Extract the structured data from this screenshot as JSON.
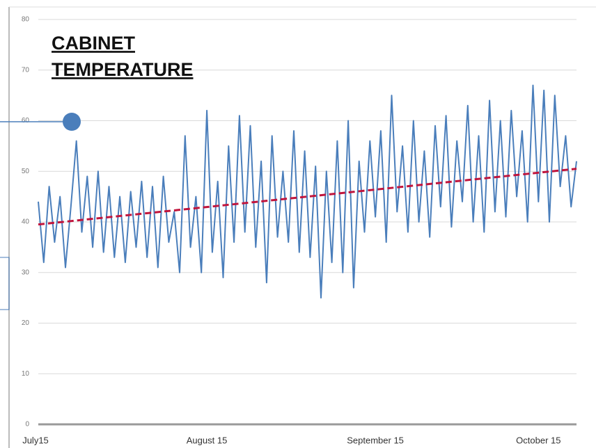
{
  "chart_data": {
    "type": "line",
    "title_lines": [
      "CABINET",
      "TEMPERATURE"
    ],
    "categories": [
      "July15",
      null,
      null,
      null,
      null,
      null,
      null,
      null,
      null,
      null,
      null,
      null,
      null,
      null,
      null,
      null,
      null,
      null,
      null,
      null,
      null,
      null,
      null,
      null,
      null,
      null,
      null,
      null,
      null,
      null,
      null,
      "August 15",
      null,
      null,
      null,
      null,
      null,
      null,
      null,
      null,
      null,
      null,
      null,
      null,
      null,
      null,
      null,
      null,
      null,
      null,
      null,
      null,
      null,
      null,
      null,
      null,
      null,
      null,
      null,
      null,
      null,
      null,
      "September 15",
      null,
      null,
      null,
      null,
      null,
      null,
      null,
      null,
      null,
      null,
      null,
      null,
      null,
      null,
      null,
      null,
      null,
      null,
      null,
      null,
      null,
      null,
      null,
      null,
      null,
      null,
      null,
      null,
      null,
      "October 15",
      null,
      null,
      null,
      null,
      null,
      null,
      null
    ],
    "series": [
      {
        "color": "#4a7ebb",
        "values": [
          44,
          32,
          47,
          36,
          45,
          31,
          43,
          56,
          38,
          49,
          35,
          50,
          34,
          47,
          33,
          45,
          32,
          46,
          35,
          48,
          33,
          47,
          31,
          49,
          36,
          42,
          30,
          57,
          35,
          45,
          30,
          62,
          34,
          48,
          29,
          55,
          36,
          61,
          38,
          59,
          35,
          52,
          28,
          57,
          37,
          50,
          36,
          58,
          34,
          54,
          33,
          51,
          25,
          50,
          32,
          56,
          30,
          60,
          27,
          52,
          38,
          56,
          41,
          58,
          36,
          65,
          42,
          55,
          38,
          60,
          40,
          54,
          37,
          59,
          43,
          61,
          39,
          56,
          44,
          63,
          40,
          57,
          38,
          64,
          42,
          60,
          41,
          62,
          45,
          58,
          40,
          67,
          44,
          66,
          40,
          65,
          47,
          57,
          43,
          52
        ]
      }
    ],
    "trend": {
      "start": 39.5,
      "end": 50.5,
      "color": "#c0143c"
    },
    "ylim": [
      0,
      80
    ],
    "yticks": [
      0,
      10,
      20,
      30,
      40,
      50,
      60,
      70,
      80
    ],
    "grid": true
  }
}
